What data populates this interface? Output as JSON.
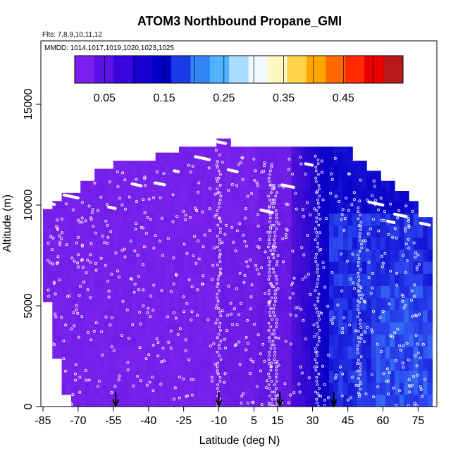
{
  "title": "ATOM3 Northbound Propane_GMI",
  "flights_label": "Flts: 7,8,9,10,11,12",
  "dates_label": "MMDD: 1014,1017,1019,1020,1023,1025",
  "chart_data": {
    "type": "heatmap",
    "title": "ATOM3 Northbound Propane_GMI",
    "xlabel": "Latitude (deg N)",
    "ylabel": "Altitude (m)",
    "xlim": [
      -85,
      80
    ],
    "ylim": [
      0,
      17500
    ],
    "x_ticks": [
      -85,
      -70,
      -55,
      -40,
      -25,
      -10,
      5,
      15,
      30,
      45,
      60,
      75
    ],
    "y_ticks": [
      0,
      5000,
      10000,
      15000
    ],
    "colorbar": {
      "range": [
        0.0,
        0.55
      ],
      "tick_values": [
        0.05,
        0.15,
        0.25,
        0.35,
        0.45
      ],
      "colors": [
        "#7b1ff0",
        "#5a12e6",
        "#3a06dd",
        "#1a00d2",
        "#0000c8",
        "#1a3ce6",
        "#2f86f4",
        "#4fb3ff",
        "#a9dcff",
        "#eefaff",
        "#fff6c0",
        "#ffd44a",
        "#ffa500",
        "#ff6a00",
        "#ff2a00",
        "#e80000",
        "#b81818"
      ]
    },
    "surface_markers_lat": [
      -54,
      -10,
      16,
      39
    ],
    "grid": false
  },
  "colors": {
    "background_southern": "#7e24ee",
    "tropics": "#5812dc",
    "northern_dark": "#0a00c8",
    "northern_mid": "#2a44ee",
    "northern_light": "#3f8ff8",
    "points": "#ffffff",
    "markers": "#000000"
  }
}
